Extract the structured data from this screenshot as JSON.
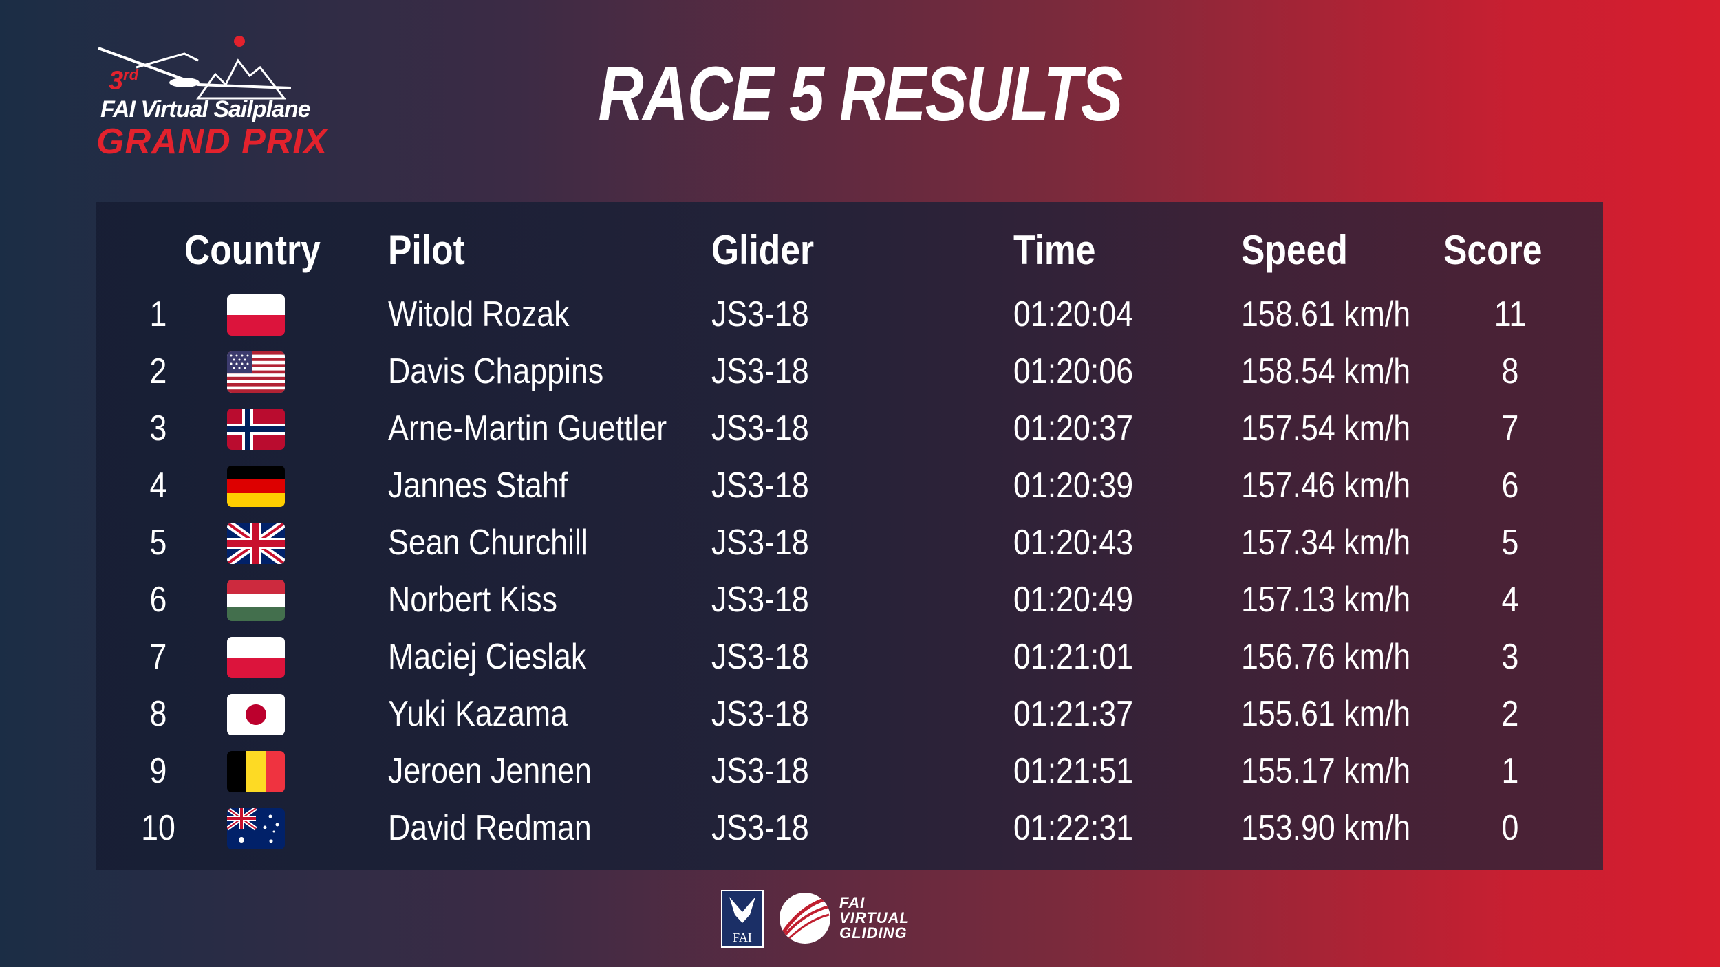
{
  "logo": {
    "ordinal": "3",
    "ordinal_suffix": "rd",
    "line1": "FAI Virtual Sailplane",
    "line2": "GRAND PRIX"
  },
  "title": "RACE 5 RESULTS",
  "headers": {
    "country": "Country",
    "pilot": "Pilot",
    "glider": "Glider",
    "time": "Time",
    "speed": "Speed",
    "score": "Score"
  },
  "results": [
    {
      "rank": "1",
      "country": "poland-flag",
      "pilot": "Witold Rozak",
      "glider": "JS3-18",
      "time": "01:20:04",
      "speed": "158.61 km/h",
      "score": "11"
    },
    {
      "rank": "2",
      "country": "usa-flag",
      "pilot": "Davis Chappins",
      "glider": "JS3-18",
      "time": "01:20:06",
      "speed": "158.54 km/h",
      "score": "8"
    },
    {
      "rank": "3",
      "country": "norway-flag",
      "pilot": "Arne-Martin Guettler",
      "glider": "JS3-18",
      "time": "01:20:37",
      "speed": "157.54 km/h",
      "score": "7"
    },
    {
      "rank": "4",
      "country": "germany-flag",
      "pilot": "Jannes Stahf",
      "glider": "JS3-18",
      "time": "01:20:39",
      "speed": "157.46 km/h",
      "score": "6"
    },
    {
      "rank": "5",
      "country": "uk-flag",
      "pilot": "Sean Churchill",
      "glider": "JS3-18",
      "time": "01:20:43",
      "speed": "157.34 km/h",
      "score": "5"
    },
    {
      "rank": "6",
      "country": "hungary-flag",
      "pilot": "Norbert Kiss",
      "glider": "JS3-18",
      "time": "01:20:49",
      "speed": "157.13 km/h",
      "score": "4"
    },
    {
      "rank": "7",
      "country": "poland-flag",
      "pilot": "Maciej Cieslak",
      "glider": "JS3-18",
      "time": "01:21:01",
      "speed": "156.76 km/h",
      "score": "3"
    },
    {
      "rank": "8",
      "country": "japan-flag",
      "pilot": "Yuki Kazama",
      "glider": "JS3-18",
      "time": "01:21:37",
      "speed": "155.61 km/h",
      "score": "2"
    },
    {
      "rank": "9",
      "country": "belgium-flag",
      "pilot": "Jeroen Jennen",
      "glider": "JS3-18",
      "time": "01:21:51",
      "speed": "155.17 km/h",
      "score": "1"
    },
    {
      "rank": "10",
      "country": "australia-flag",
      "pilot": "David Redman",
      "glider": "JS3-18",
      "time": "01:22:31",
      "speed": "153.90 km/h",
      "score": "0"
    }
  ],
  "footer": {
    "fai_label": "FAI",
    "vg_line1": "FAI",
    "vg_line2": "VIRTUAL",
    "vg_line3": "GLIDING"
  },
  "colors": {
    "brand_red": "#e3222d",
    "panel_dark": "#1c2239",
    "text": "#ffffff"
  }
}
